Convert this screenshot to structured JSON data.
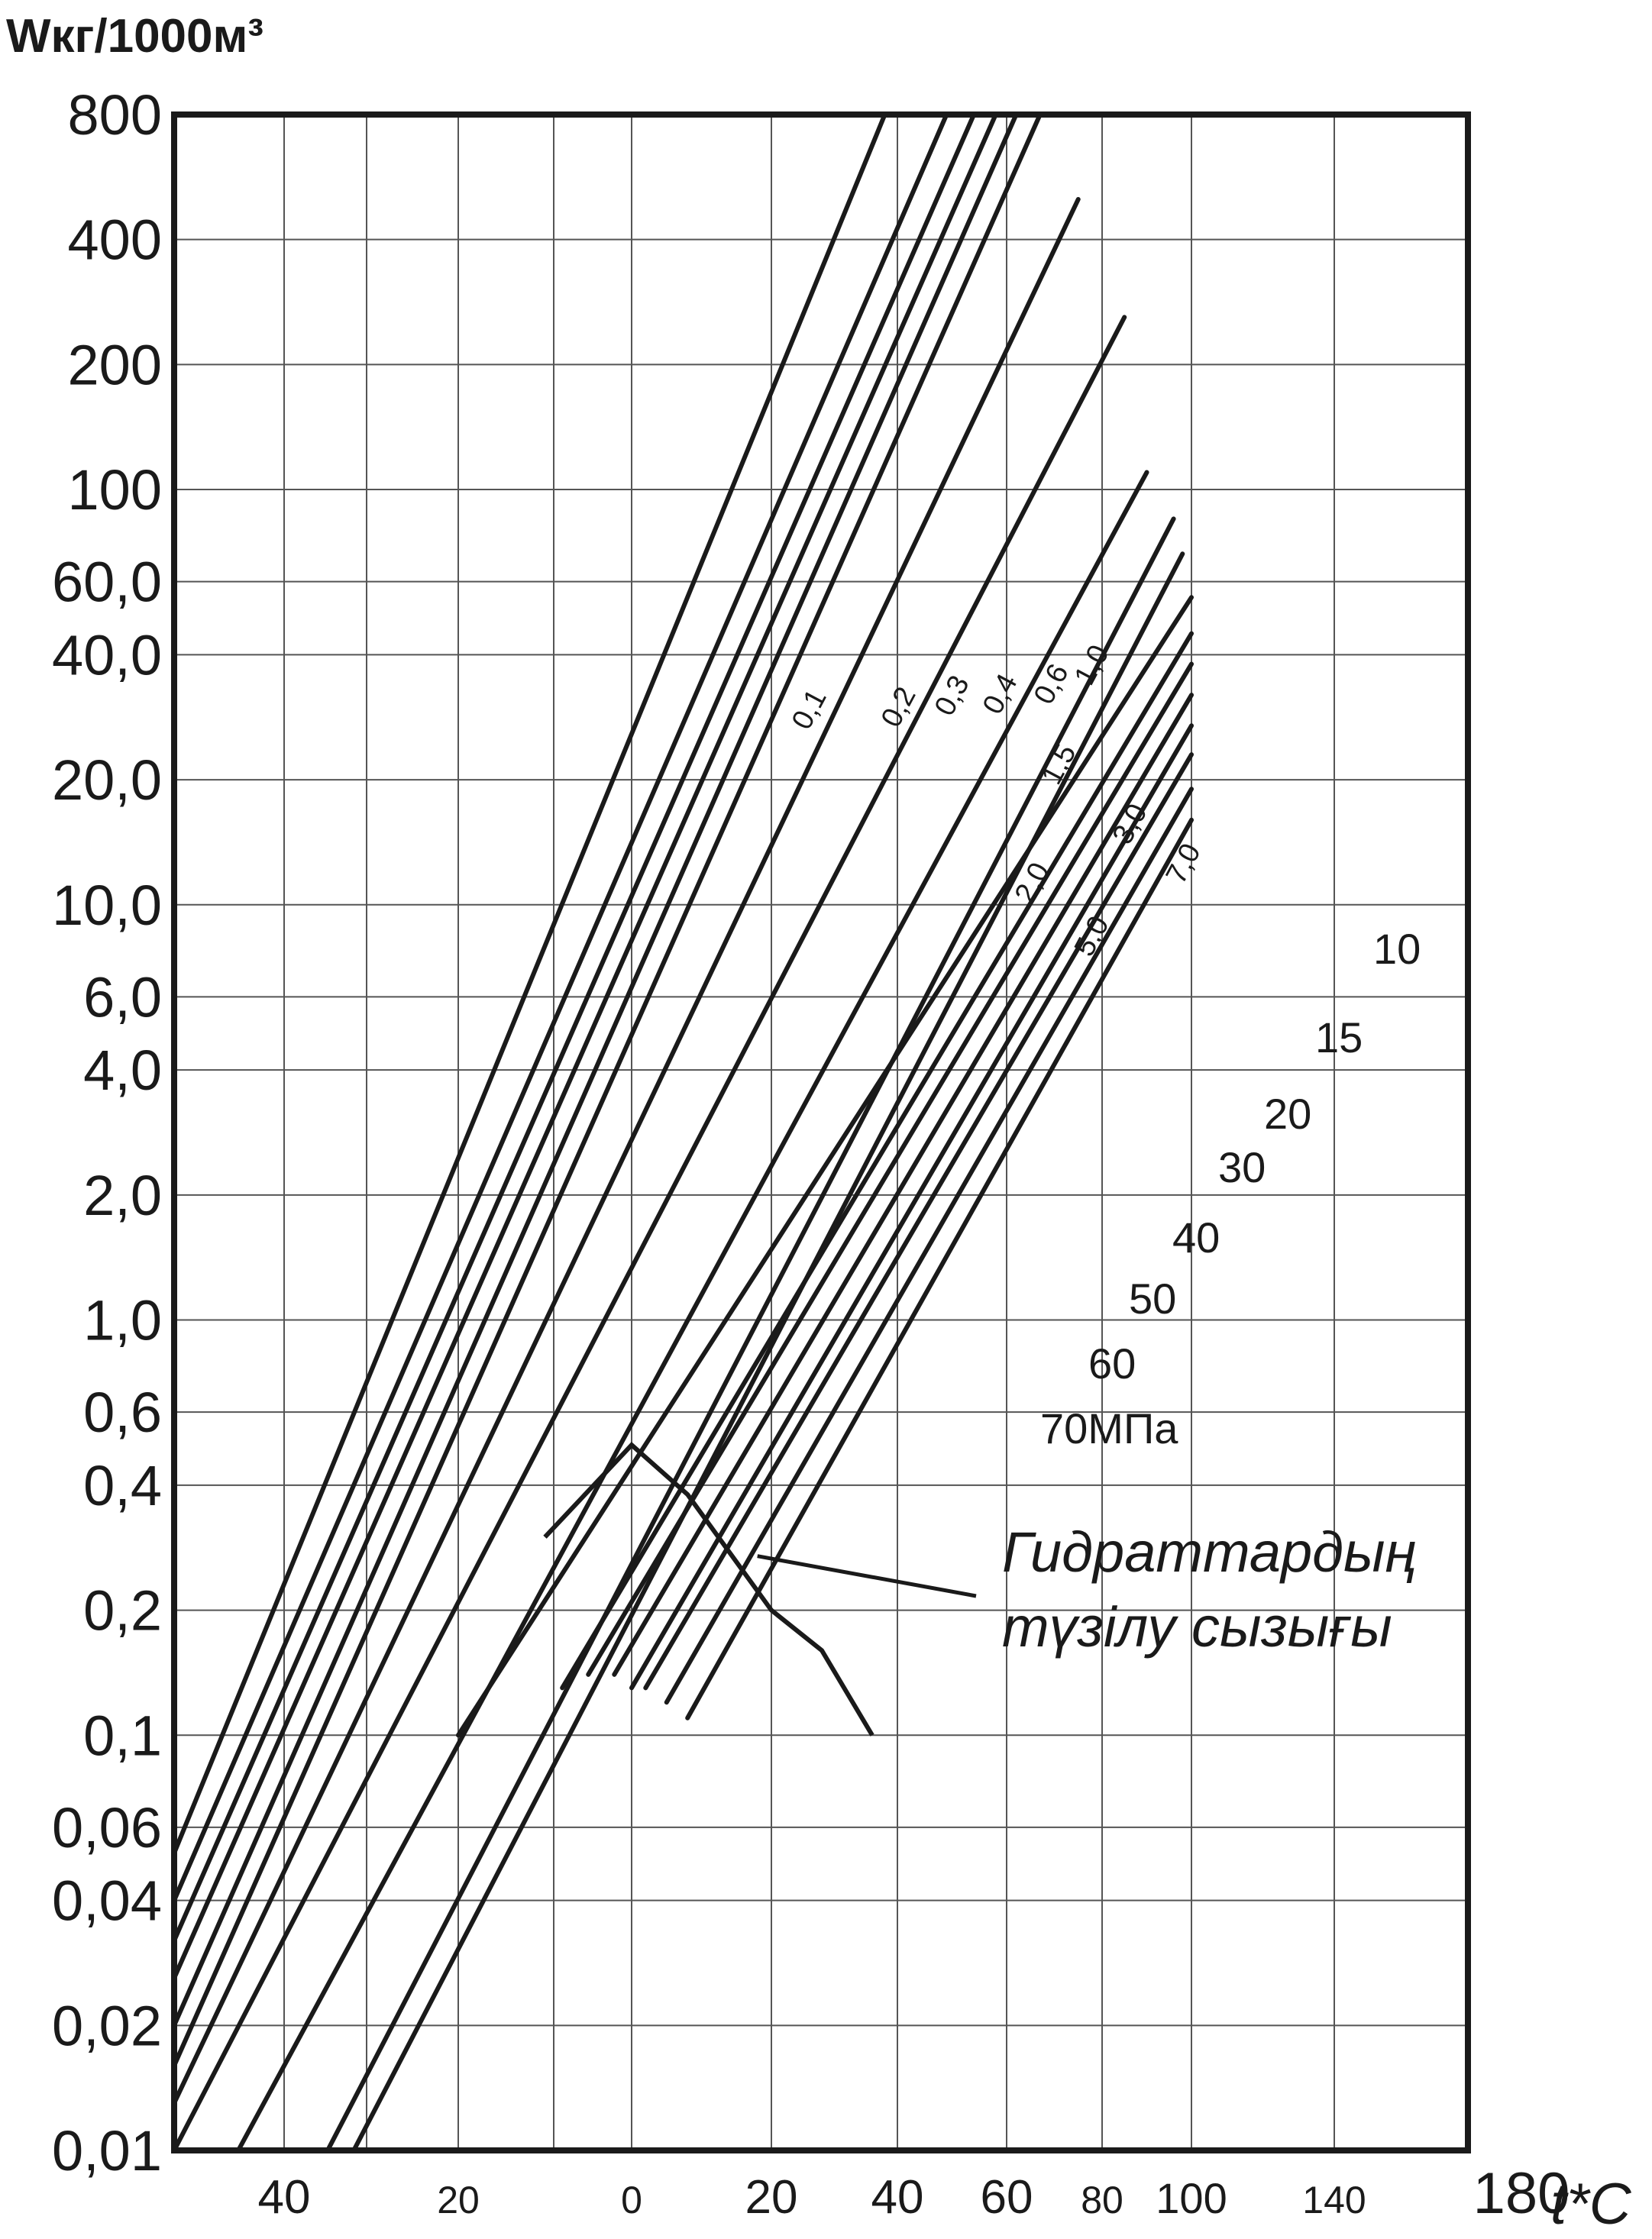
{
  "chart_data": {
    "type": "line",
    "title": "Wкг/1000м³",
    "ylabel": "Wкг/1000м³",
    "xlabel": "t*C",
    "y_scale": "log",
    "ylim": [
      0.01,
      800
    ],
    "y_ticks": [
      {
        "value": 800,
        "label": "800"
      },
      {
        "value": 400,
        "label": "400"
      },
      {
        "value": 200,
        "label": "200"
      },
      {
        "value": 100,
        "label": "100"
      },
      {
        "value": 60,
        "label": "60,0"
      },
      {
        "value": 40,
        "label": "40,0"
      },
      {
        "value": 20,
        "label": "20,0"
      },
      {
        "value": 10,
        "label": "10,0"
      },
      {
        "value": 6,
        "label": "6,0"
      },
      {
        "value": 4,
        "label": "4,0"
      },
      {
        "value": 2,
        "label": "2,0"
      },
      {
        "value": 1,
        "label": "1,0"
      },
      {
        "value": 0.6,
        "label": "0,6"
      },
      {
        "value": 0.4,
        "label": "0,4"
      },
      {
        "value": 0.2,
        "label": "0,2"
      },
      {
        "value": 0.1,
        "label": "0,1"
      },
      {
        "value": 0.06,
        "label": "0,06"
      },
      {
        "value": 0.04,
        "label": "0,04"
      },
      {
        "value": 0.02,
        "label": "0,02"
      },
      {
        "value": 0.01,
        "label": "0,01"
      }
    ],
    "x_ticks": [
      {
        "value": -40,
        "label": "40"
      },
      {
        "value": -20,
        "label": "20"
      },
      {
        "value": 0,
        "label": "0"
      },
      {
        "value": 20,
        "label": "20"
      },
      {
        "value": 40,
        "label": "40"
      },
      {
        "value": 60,
        "label": "60"
      },
      {
        "value": 80,
        "label": "80"
      },
      {
        "value": 100,
        "label": "100"
      },
      {
        "value": 140,
        "label": "140"
      },
      {
        "value": 180,
        "label": "180"
      }
    ],
    "grid": true,
    "series": [
      {
        "name": "0,1",
        "points": [
          [
            -52,
            0.052
          ],
          [
            38,
            800
          ]
        ]
      },
      {
        "name": "0,2",
        "points": [
          [
            -52,
            0.04
          ],
          [
            49,
            800
          ]
        ]
      },
      {
        "name": "0,3",
        "points": [
          [
            -52,
            0.032
          ],
          [
            54,
            800
          ]
        ]
      },
      {
        "name": "0,4",
        "points": [
          [
            -52,
            0.026
          ],
          [
            58,
            800
          ]
        ]
      },
      {
        "name": "0,6",
        "points": [
          [
            -52,
            0.02
          ],
          [
            62,
            800
          ]
        ]
      },
      {
        "name": "1,0",
        "points": [
          [
            -52,
            0.016
          ],
          [
            67,
            800
          ]
        ]
      },
      {
        "name": "1,5",
        "points": [
          [
            -52,
            0.013
          ],
          [
            75,
            500
          ]
        ]
      },
      {
        "name": "2,0",
        "points": [
          [
            -52,
            0.01
          ],
          [
            85,
            260
          ]
        ]
      },
      {
        "name": "3,0",
        "points": [
          [
            -45,
            0.01
          ],
          [
            90,
            110
          ]
        ]
      },
      {
        "name": "5,0",
        "points": [
          [
            -35,
            0.01
          ],
          [
            96,
            85
          ]
        ]
      },
      {
        "name": "7,0",
        "points": [
          [
            -32,
            0.01
          ],
          [
            98,
            70
          ]
        ]
      },
      {
        "name": "10",
        "points": [
          [
            -20,
            0.1
          ],
          [
            100,
            55
          ]
        ]
      },
      {
        "name": "15",
        "points": [
          [
            -8,
            0.13
          ],
          [
            100,
            45
          ]
        ]
      },
      {
        "name": "20",
        "points": [
          [
            -5,
            0.14
          ],
          [
            100,
            38
          ]
        ]
      },
      {
        "name": "30",
        "points": [
          [
            -2,
            0.14
          ],
          [
            100,
            32
          ]
        ]
      },
      {
        "name": "40",
        "points": [
          [
            0,
            0.13
          ],
          [
            100,
            27
          ]
        ]
      },
      {
        "name": "50",
        "points": [
          [
            2,
            0.13
          ],
          [
            100,
            23
          ]
        ]
      },
      {
        "name": "60",
        "points": [
          [
            5,
            0.12
          ],
          [
            100,
            19
          ]
        ]
      },
      {
        "name": "70МПа",
        "points": [
          [
            8,
            0.11
          ],
          [
            100,
            16
          ]
        ]
      }
    ],
    "annotations": [
      {
        "text": "Гидраттардың",
        "role": "hydrate-line-label-line-1"
      },
      {
        "text": "түзілу сызығы",
        "role": "hydrate-line-label-line-2"
      }
    ]
  }
}
